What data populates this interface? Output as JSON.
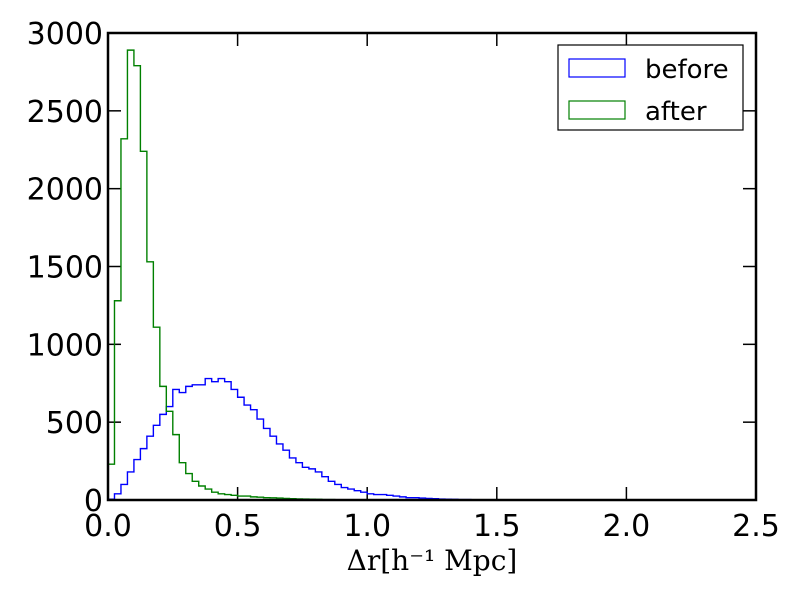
{
  "chart_data": {
    "type": "histogram",
    "xlabel": "Δr[h⁻¹ Mpc]",
    "xlim": [
      0,
      2.5
    ],
    "ylim": [
      0,
      3000
    ],
    "xticks": [
      "0.0",
      "0.5",
      "1.0",
      "1.5",
      "2.0",
      "2.5"
    ],
    "yticks": [
      "0",
      "500",
      "1000",
      "1500",
      "2000",
      "2500",
      "3000"
    ],
    "grid": false,
    "legend_position": "top-right",
    "bin_width": 0.025,
    "bin_start": 0.0,
    "series": [
      {
        "name": "before",
        "color": "#0000ff",
        "values": [
          5,
          40,
          100,
          180,
          260,
          330,
          410,
          480,
          550,
          600,
          710,
          690,
          730,
          740,
          740,
          780,
          760,
          780,
          760,
          710,
          660,
          610,
          580,
          520,
          460,
          410,
          360,
          320,
          270,
          240,
          210,
          200,
          180,
          150,
          120,
          100,
          80,
          70,
          60,
          50,
          40,
          35,
          35,
          30,
          25,
          20,
          15,
          15,
          12,
          10,
          8,
          6,
          5,
          4,
          3,
          3,
          2,
          2,
          1,
          1
        ]
      },
      {
        "name": "after",
        "color": "#008000",
        "values": [
          230,
          1280,
          2320,
          2890,
          2790,
          2240,
          1530,
          1110,
          730,
          570,
          420,
          240,
          170,
          120,
          90,
          70,
          50,
          40,
          35,
          30,
          25,
          25,
          20,
          18,
          15,
          14,
          12,
          10,
          8,
          7,
          6,
          5,
          4,
          3,
          3,
          2,
          2,
          1
        ]
      }
    ]
  }
}
